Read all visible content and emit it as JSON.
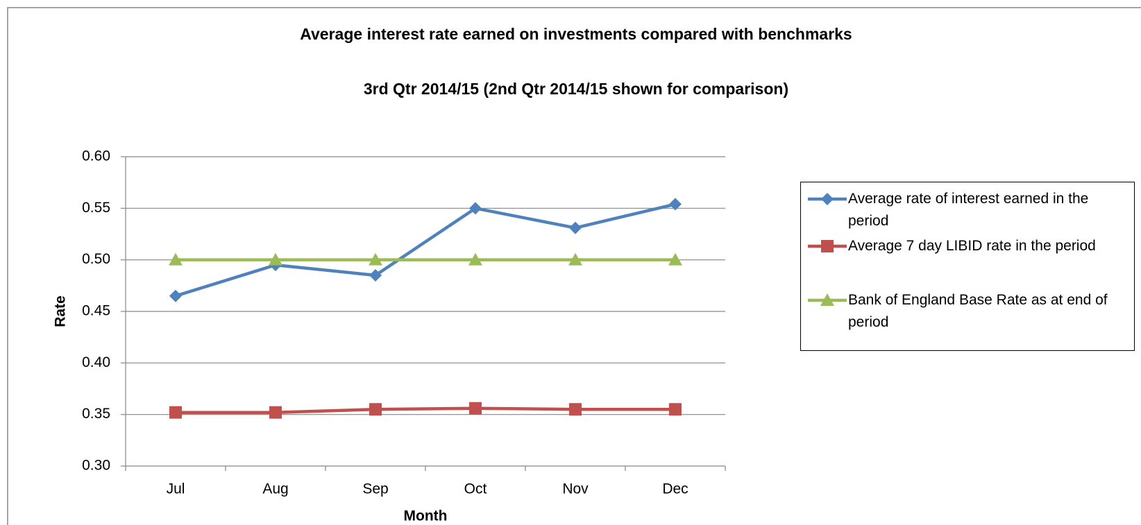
{
  "chart_data": {
    "type": "line",
    "title": "Average interest rate earned on investments compared with benchmarks",
    "subtitle": "3rd Qtr 2014/15 (2nd Qtr 2014/15 shown for comparison)",
    "x_label": "Month",
    "y_label": "Rate",
    "categories": [
      "Jul",
      "Aug",
      "Sep",
      "Oct",
      "Nov",
      "Dec"
    ],
    "series": [
      {
        "name": "Average rate of interest earned in the period",
        "color": "#4f81bd",
        "marker": "diamond",
        "values": [
          0.465,
          0.495,
          0.485,
          0.55,
          0.531,
          0.554
        ]
      },
      {
        "name": "Average 7 day LIBID rate in the period",
        "color": "#c0504d",
        "marker": "square",
        "values": [
          0.352,
          0.352,
          0.355,
          0.356,
          0.355,
          0.355
        ]
      },
      {
        "name": "Bank of England Base Rate as at end of period",
        "color": "#9bbb59",
        "marker": "triangle",
        "values": [
          0.5,
          0.5,
          0.5,
          0.5,
          0.5,
          0.5
        ]
      }
    ],
    "ylim": [
      0.3,
      0.6
    ],
    "yticks": [
      {
        "value": 0.3,
        "label": "0.30"
      },
      {
        "value": 0.35,
        "label": "0.35"
      },
      {
        "value": 0.4,
        "label": "0.40"
      },
      {
        "value": 0.45,
        "label": "0.45"
      },
      {
        "value": 0.5,
        "label": "0.50"
      },
      {
        "value": 0.55,
        "label": "0.55"
      },
      {
        "value": 0.6,
        "label": "0.60"
      }
    ],
    "grid": true,
    "legend": "right"
  }
}
